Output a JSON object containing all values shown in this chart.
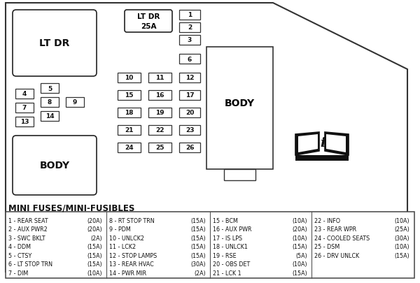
{
  "bg_color": "#ffffff",
  "border_color": "#222222",
  "mini_fuses_title": "MINI FUSES/MINI-FUSIBLES",
  "fuse_legend": [
    [
      "1 - REAR SEAT",
      "(20A)",
      "8 - RT STOP TRN",
      "(15A)",
      "15 - BCM",
      "(10A)",
      "22 - INFO",
      "(10A)"
    ],
    [
      "2 - AUX PWR2",
      "(20A)",
      "9 - PDM",
      "(15A)",
      "16 - AUX PWR",
      "(20A)",
      "23 - REAR WPR",
      "(25A)"
    ],
    [
      "3 - SWC BKLT",
      "(2A)",
      "10 - UNLCK2",
      "(15A)",
      "17 - IS LPS",
      "(10A)",
      "24 - COOLED SEATS",
      "(30A)"
    ],
    [
      "4 - DDM",
      "(15A)",
      "11 - LCK2",
      "(15A)",
      "18 - UNLCK1",
      "(15A)",
      "25 - DSM",
      "(10A)"
    ],
    [
      "5 - CTSY",
      "(15A)",
      "12 - STOP LAMPS",
      "(15A)",
      "19 - RSE",
      "(5A)",
      "26 - DRV UNLCK",
      "(15A)"
    ],
    [
      "6 - LT STOP TRN",
      "(15A)",
      "13 - REAR HVAC",
      "(30A)",
      "20 - OBS DET",
      "(10A)",
      "",
      ""
    ],
    [
      "7 - DIM",
      "(10A)",
      "14 - PWR MIR",
      "(2A)",
      "21 - LCK 1",
      "(15A)",
      "",
      ""
    ]
  ]
}
